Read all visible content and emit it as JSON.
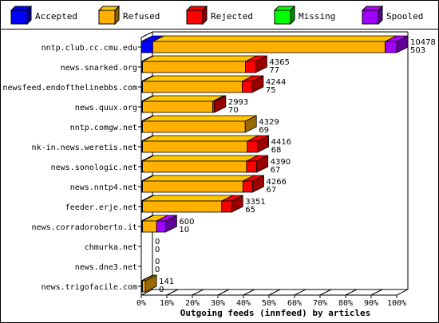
{
  "chart_data": {
    "type": "bar",
    "orientation": "horizontal",
    "stacked": true,
    "xlabel": "Outgoing feeds (innfeed) by articles",
    "ylabel": "",
    "xlim": [
      0,
      100
    ],
    "x_unit": "%",
    "x_ticks": [
      "0%",
      "10%",
      "20%",
      "30%",
      "40%",
      "50%",
      "60%",
      "70%",
      "80%",
      "90%",
      "100%"
    ],
    "legend_position": "top",
    "legend": [
      {
        "name": "Accepted",
        "color": "#0000ff"
      },
      {
        "name": "Refused",
        "color": "#ffb000"
      },
      {
        "name": "Rejected",
        "color": "#ff0000"
      },
      {
        "name": "Missing",
        "color": "#00ff00"
      },
      {
        "name": "Spooled",
        "color": "#a000ff"
      }
    ],
    "categories": [
      "nntp.club.cc.cmu.edu",
      "news.snarked.org",
      "newsfeed.endofthelinebbs.com",
      "news.quux.org",
      "nntp.comgw.net",
      "nk-in.news.weretis.net",
      "news.sonologic.net",
      "news.nntp4.net",
      "feeder.erje.net",
      "news.corradoroberto.it",
      "chmurka.net",
      "news.dne3.net",
      "news.trigofacile.com"
    ],
    "labels_top": [
      "10478",
      "4365",
      "4244",
      "2993",
      "4329",
      "4416",
      "4390",
      "4266",
      "3351",
      "600",
      "0",
      "0",
      "141"
    ],
    "labels_bottom": [
      "503",
      "77",
      "75",
      "70",
      "69",
      "68",
      "67",
      "67",
      "65",
      "10",
      "0",
      "0",
      "0"
    ],
    "series": [
      {
        "name": "Accepted",
        "values": [
          4.5,
          0.5,
          0.5,
          0.5,
          0.5,
          0.5,
          0.5,
          0.5,
          0.5,
          0.5,
          0,
          0,
          0.5
        ]
      },
      {
        "name": "Refused",
        "values": [
          91.0,
          40.3,
          39.0,
          27.5,
          40.2,
          41.0,
          40.7,
          39.3,
          31.0,
          5.5,
          0,
          0,
          1.1
        ]
      },
      {
        "name": "Rejected",
        "values": [
          0,
          4.0,
          3.9,
          0.7,
          0,
          4.0,
          4.0,
          3.8,
          3.9,
          0,
          0,
          0,
          0
        ]
      },
      {
        "name": "Missing",
        "values": [
          0,
          0,
          0,
          0,
          0,
          0,
          0,
          0,
          0,
          0,
          0,
          0,
          0
        ]
      },
      {
        "name": "Spooled",
        "values": [
          4.5,
          0,
          0,
          0,
          0,
          0,
          0,
          0,
          0,
          3.5,
          0,
          0,
          0
        ]
      }
    ]
  }
}
